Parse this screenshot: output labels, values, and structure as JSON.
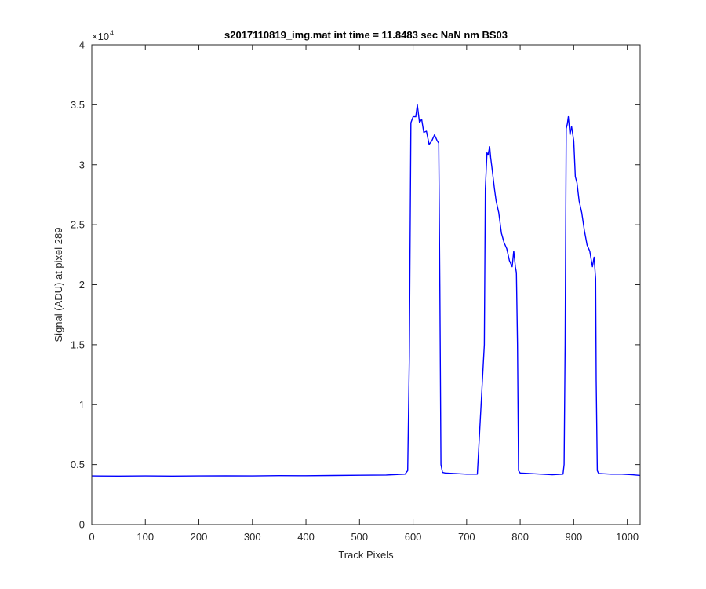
{
  "chart_data": {
    "type": "line",
    "title": "s2017110819_img.mat int time = 11.8483 sec  NaN nm BS03",
    "xlabel": "Track Pixels",
    "ylabel": "Signal (ADU) at pixel 289",
    "xlim": [
      0,
      1024
    ],
    "ylim": [
      0,
      40000
    ],
    "x_ticks": [
      0,
      100,
      200,
      300,
      400,
      500,
      600,
      700,
      800,
      900,
      1000
    ],
    "x_tick_labels": [
      "0",
      "100",
      "200",
      "300",
      "400",
      "500",
      "600",
      "700",
      "800",
      "900",
      "1000"
    ],
    "y_ticks": [
      0,
      5000,
      10000,
      15000,
      20000,
      25000,
      30000,
      35000,
      40000
    ],
    "y_tick_labels": [
      "0",
      "0.5",
      "1",
      "1.5",
      "2",
      "2.5",
      "3",
      "3.5",
      "4"
    ],
    "y_exponent_base": "×10",
    "y_exponent_power": "4",
    "grid": false,
    "line_color": "#0000ff",
    "series": [
      {
        "x": [
          0,
          50,
          100,
          150,
          200,
          250,
          300,
          350,
          400,
          450,
          500,
          550,
          585,
          590,
          593,
          596,
          600,
          605,
          608,
          612,
          616,
          620,
          625,
          630,
          635,
          640,
          645,
          648,
          650,
          652,
          655,
          660,
          680,
          700,
          720,
          733,
          735,
          738,
          740,
          743,
          745,
          748,
          752,
          755,
          760,
          765,
          770,
          775,
          780,
          785,
          788,
          791,
          793,
          795,
          797,
          800,
          820,
          840,
          860,
          880,
          882,
          884,
          886,
          888,
          890,
          893,
          896,
          900,
          903,
          906,
          910,
          915,
          920,
          925,
          930,
          935,
          938,
          940,
          941,
          942,
          944,
          946,
          948,
          950,
          970,
          990,
          1010,
          1024
        ],
        "y": [
          4050,
          4040,
          4050,
          4040,
          4050,
          4060,
          4050,
          4080,
          4070,
          4090,
          4110,
          4130,
          4200,
          4500,
          14000,
          33500,
          34000,
          34000,
          35000,
          33500,
          33800,
          32700,
          32800,
          31700,
          32000,
          32500,
          32000,
          31800,
          20000,
          5000,
          4350,
          4300,
          4250,
          4200,
          4200,
          15000,
          28000,
          31000,
          30800,
          31500,
          30600,
          29500,
          28000,
          27000,
          26000,
          24300,
          23500,
          23000,
          22000,
          21500,
          22800,
          21500,
          21000,
          15000,
          4500,
          4300,
          4250,
          4200,
          4150,
          4200,
          5000,
          15000,
          33000,
          33400,
          34000,
          32500,
          33200,
          32000,
          29000,
          28500,
          27000,
          26000,
          24500,
          23300,
          22800,
          21500,
          22300,
          21000,
          20500,
          12000,
          4500,
          4300,
          4250,
          4250,
          4200,
          4200,
          4150,
          4100
        ]
      }
    ]
  }
}
